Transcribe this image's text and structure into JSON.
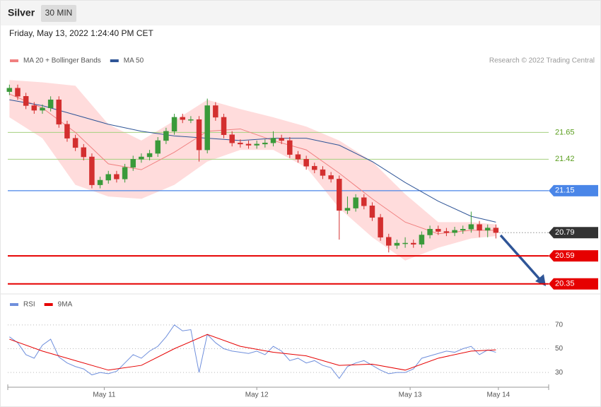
{
  "header": {
    "title": "Silver",
    "interval": "30 MIN",
    "timestamp": "Friday, May 13, 2022 1:24:40 PM CET"
  },
  "chart_data": [
    {
      "type": "candlestick",
      "credit": "Research © 2022 Trading Central",
      "up_color": "#3a9a3a",
      "down_color": "#d32f2f",
      "band_color": "#ffdcdc",
      "xlim": [
        -0.2,
        65.4
      ],
      "ylim": [
        20.3,
        22.18
      ],
      "x": [
        0,
        1,
        2,
        3,
        4,
        5,
        6,
        7,
        8,
        9,
        10,
        11,
        12,
        13,
        14,
        15,
        16,
        17,
        18,
        19,
        20,
        21,
        22,
        23,
        24,
        25,
        26,
        27,
        28,
        29,
        30,
        31,
        32,
        33,
        34,
        35,
        36,
        37,
        38,
        39,
        40,
        41,
        42,
        43,
        44,
        45,
        46,
        47,
        48,
        49,
        50,
        51,
        52,
        53,
        54,
        55,
        56,
        57,
        58,
        59
      ],
      "open": [
        22.0,
        22.03,
        21.96,
        21.88,
        21.84,
        21.86,
        21.93,
        21.72,
        21.6,
        21.52,
        21.44,
        21.2,
        21.24,
        21.29,
        21.25,
        21.35,
        21.42,
        21.44,
        21.47,
        21.58,
        21.66,
        21.78,
        21.76,
        21.76,
        21.5,
        21.88,
        21.78,
        21.63,
        21.56,
        21.55,
        21.54,
        21.55,
        21.56,
        21.6,
        21.58,
        21.46,
        21.42,
        21.36,
        21.33,
        21.28,
        21.25,
        20.98,
        21.0,
        21.09,
        21.02,
        20.92,
        20.75,
        20.68,
        20.7,
        20.7,
        20.69,
        20.77,
        20.82,
        20.8,
        20.79,
        20.81,
        20.82,
        20.86,
        20.81,
        20.83
      ],
      "high": [
        22.06,
        22.06,
        21.99,
        21.91,
        21.89,
        21.96,
        21.96,
        21.75,
        21.63,
        21.55,
        21.47,
        21.27,
        21.32,
        21.32,
        21.38,
        21.45,
        21.47,
        21.5,
        21.61,
        21.69,
        21.81,
        21.81,
        21.79,
        21.79,
        21.94,
        21.91,
        21.81,
        21.66,
        21.59,
        21.58,
        21.58,
        21.59,
        21.66,
        21.63,
        21.61,
        21.49,
        21.45,
        21.39,
        21.36,
        21.31,
        21.28,
        21.1,
        21.12,
        21.12,
        21.05,
        20.95,
        20.78,
        20.73,
        20.75,
        20.73,
        20.8,
        20.85,
        20.85,
        20.83,
        20.84,
        20.85,
        20.97,
        20.89,
        20.86,
        20.86
      ],
      "low": [
        21.97,
        21.93,
        21.85,
        21.81,
        21.81,
        21.83,
        21.69,
        21.57,
        21.49,
        21.41,
        21.17,
        21.17,
        21.21,
        21.22,
        21.22,
        21.32,
        21.39,
        21.41,
        21.44,
        21.55,
        21.63,
        21.73,
        21.73,
        21.4,
        21.47,
        21.75,
        21.6,
        21.53,
        21.52,
        21.51,
        21.51,
        21.52,
        21.53,
        21.55,
        21.43,
        21.39,
        21.33,
        21.3,
        21.25,
        21.22,
        20.73,
        20.95,
        20.97,
        20.99,
        20.89,
        20.72,
        20.62,
        20.65,
        20.66,
        20.66,
        20.66,
        20.74,
        20.77,
        20.76,
        20.76,
        20.78,
        20.79,
        20.75,
        20.75,
        20.74
      ],
      "close": [
        22.03,
        21.96,
        21.88,
        21.84,
        21.86,
        21.93,
        21.72,
        21.6,
        21.52,
        21.44,
        21.2,
        21.24,
        21.29,
        21.25,
        21.35,
        21.42,
        21.44,
        21.47,
        21.58,
        21.66,
        21.78,
        21.76,
        21.76,
        21.5,
        21.88,
        21.78,
        21.63,
        21.56,
        21.55,
        21.54,
        21.55,
        21.56,
        21.6,
        21.58,
        21.46,
        21.42,
        21.36,
        21.33,
        21.28,
        21.25,
        20.98,
        21.0,
        21.09,
        21.02,
        20.92,
        20.75,
        20.68,
        20.7,
        20.7,
        20.69,
        20.77,
        20.82,
        20.8,
        20.79,
        20.81,
        20.82,
        20.86,
        20.81,
        20.83,
        20.79
      ],
      "series": [
        {
          "name": "MA 20 + Bollinger Bands",
          "color": "#f08080",
          "x": [
            0,
            4,
            8,
            12,
            16,
            20,
            24,
            28,
            32,
            36,
            40,
            44,
            48,
            52,
            56,
            59
          ],
          "values": [
            21.98,
            21.86,
            21.65,
            21.38,
            21.33,
            21.48,
            21.66,
            21.68,
            21.58,
            21.5,
            21.3,
            21.08,
            20.88,
            20.78,
            20.81,
            20.81
          ],
          "upper": [
            22.1,
            22.08,
            22.05,
            21.72,
            21.58,
            21.75,
            21.93,
            21.85,
            21.78,
            21.7,
            21.58,
            21.4,
            21.12,
            20.88,
            20.88,
            20.86
          ],
          "lower": [
            21.78,
            21.6,
            21.2,
            21.1,
            21.08,
            21.2,
            21.4,
            21.5,
            21.5,
            21.35,
            21.0,
            20.75,
            20.55,
            20.66,
            20.74,
            20.76
          ]
        },
        {
          "name": "MA 50",
          "color": "#2f5597",
          "x": [
            0,
            4,
            8,
            12,
            16,
            20,
            24,
            28,
            32,
            36,
            40,
            44,
            48,
            52,
            56,
            59
          ],
          "values": [
            21.93,
            21.88,
            21.8,
            21.72,
            21.66,
            21.62,
            21.6,
            21.58,
            21.6,
            21.6,
            21.54,
            21.4,
            21.22,
            21.06,
            20.93,
            20.88
          ]
        }
      ],
      "levels": [
        {
          "value": 21.65,
          "color": "#a5d07f",
          "text_color": "#5a9e1e",
          "tag": false
        },
        {
          "value": 21.42,
          "color": "#a5d07f",
          "text_color": "#5a9e1e",
          "tag": false
        },
        {
          "value": 21.15,
          "color": "#4a86e8",
          "text_color": "#ffffff",
          "tag": true
        },
        {
          "value": 20.59,
          "color": "#e60000",
          "text_color": "#ffffff",
          "tag": true
        },
        {
          "value": 20.35,
          "color": "#e60000",
          "text_color": "#ffffff",
          "tag": true
        }
      ],
      "current": {
        "value": 20.79,
        "color": "#333333"
      }
    },
    {
      "type": "line",
      "xlim": [
        -0.2,
        65.4
      ],
      "ylim": [
        20,
        80
      ],
      "yticks": [
        30,
        50,
        70
      ],
      "grid": true,
      "xticks": [
        {
          "value": 11.5,
          "label": "May 11"
        },
        {
          "value": 30,
          "label": "May 12"
        },
        {
          "value": 48.6,
          "label": "May 13"
        },
        {
          "value": 59.3,
          "label": "May 14"
        }
      ],
      "series": [
        {
          "name": "RSI",
          "color": "#6f8fdc",
          "x": [
            0,
            1,
            2,
            3,
            4,
            5,
            6,
            7,
            8,
            9,
            10,
            11,
            12,
            13,
            14,
            15,
            16,
            17,
            18,
            19,
            20,
            21,
            22,
            23,
            24,
            25,
            26,
            27,
            28,
            29,
            30,
            31,
            32,
            33,
            34,
            35,
            36,
            37,
            38,
            39,
            40,
            41,
            42,
            43,
            44,
            45,
            46,
            47,
            48,
            49,
            50,
            51,
            52,
            53,
            54,
            55,
            56,
            57,
            58,
            59
          ],
          "values": [
            60,
            55,
            45,
            42,
            53,
            58,
            43,
            38,
            35,
            33,
            28,
            30,
            29,
            31,
            38,
            45,
            42,
            48,
            52,
            60,
            70,
            65,
            66,
            30,
            62,
            55,
            50,
            48,
            47,
            46,
            48,
            45,
            52,
            48,
            40,
            42,
            38,
            40,
            36,
            34,
            25,
            35,
            38,
            40,
            36,
            32,
            29,
            30,
            30,
            33,
            42,
            44,
            46,
            48,
            47,
            50,
            52,
            45,
            49,
            47
          ]
        },
        {
          "name": "9MA",
          "color": "#e60000",
          "x": [
            0,
            4,
            8,
            12,
            16,
            20,
            24,
            28,
            32,
            36,
            40,
            44,
            48,
            52,
            56,
            59
          ],
          "values": [
            58,
            48,
            40,
            32,
            36,
            50,
            62,
            52,
            47,
            44,
            36,
            37,
            32,
            42,
            48,
            49
          ]
        }
      ]
    }
  ]
}
